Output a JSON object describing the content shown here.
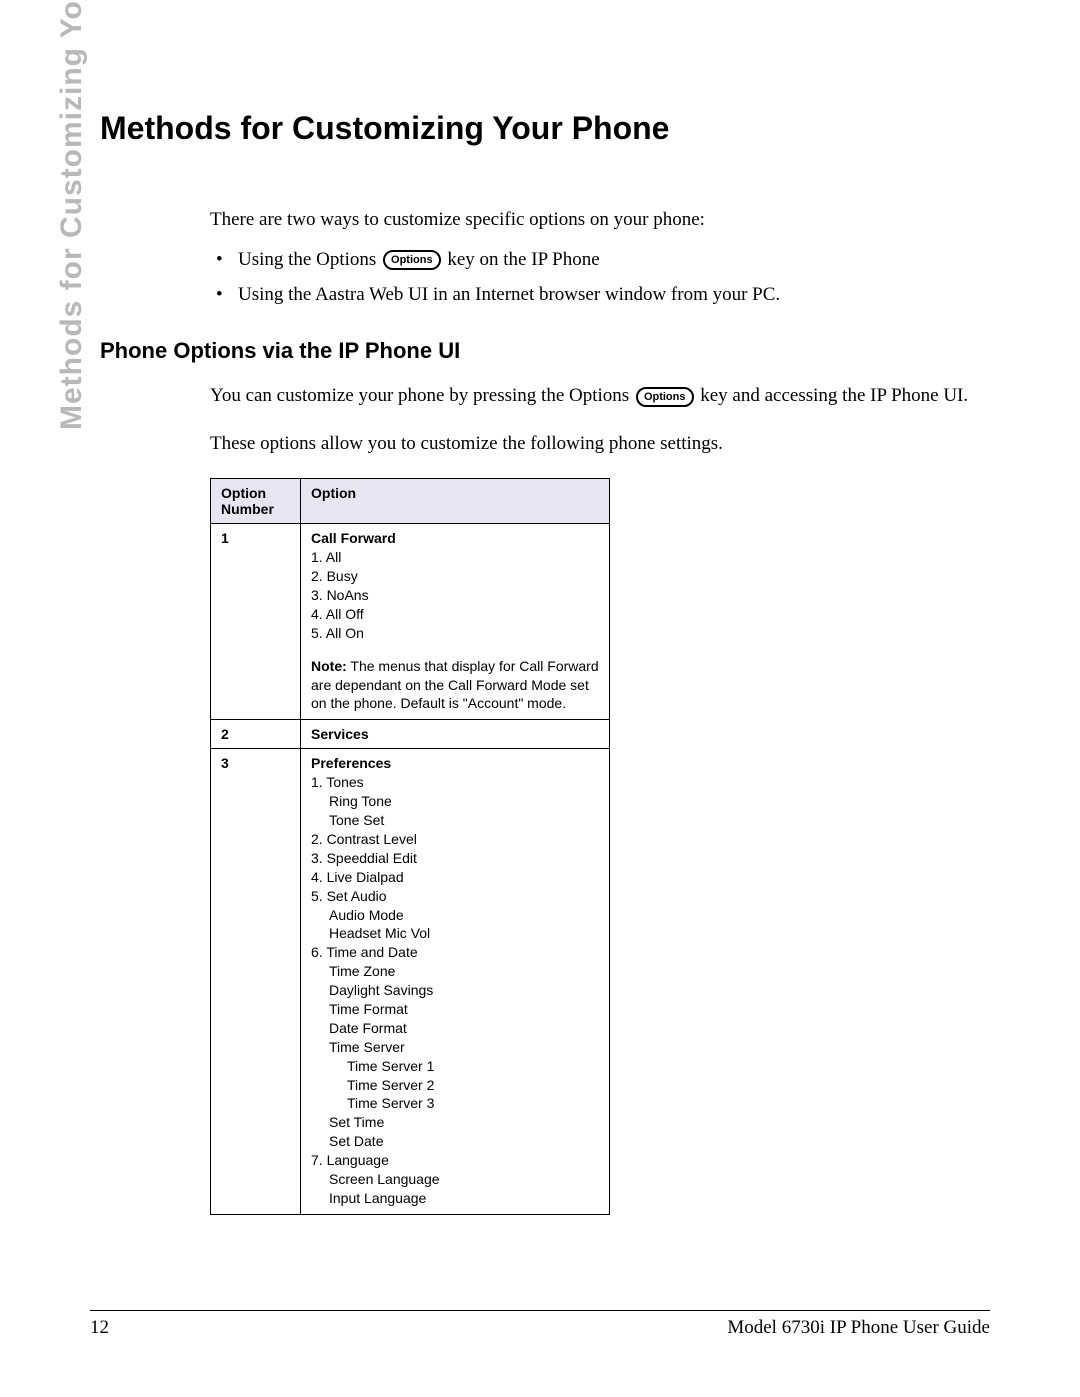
{
  "side_title": "Methods for Customizing Your Phone",
  "heading": "Methods for Customizing Your Phone",
  "intro": "There are two ways to customize specific options on your phone:",
  "bullet1_a": "Using the Options ",
  "bullet1_b": " key on the IP Phone",
  "bullet2": "Using the Aastra Web UI in an Internet browser window from your PC.",
  "options_key_label": "Options",
  "sub_heading": "Phone Options via the IP Phone UI",
  "para1_a": "You can customize your phone by pressing the Options ",
  "para1_b": " key and accessing the IP Phone UI.",
  "para2": "These options allow you to customize the following phone settings.",
  "table": {
    "header_col1": "Option Number",
    "header_col2": "Option",
    "header_bg": "#e6e6f2",
    "border_color": "#000000",
    "rows": {
      "r1": {
        "num": "1",
        "title": "Call Forward",
        "items": {
          "i1": "1. All",
          "i2": "2. Busy",
          "i3": "3. NoAns",
          "i4": "4. All Off",
          "i5": "5. All On"
        },
        "note_label": "Note:",
        "note_text": " The menus that display for Call Forward are dependant on the Call Forward Mode set on the phone. Default is \"Account\" mode."
      },
      "r2": {
        "num": "2",
        "title": "Services"
      },
      "r3": {
        "num": "3",
        "title": "Preferences",
        "items": {
          "i1": "1. Tones",
          "i1a": "Ring Tone",
          "i1b": "Tone Set",
          "i2": "2. Contrast Level",
          "i3": "3. Speeddial Edit",
          "i4": "4. Live Dialpad",
          "i5": "5. Set Audio",
          "i5a": "Audio Mode",
          "i5b": "Headset Mic Vol",
          "i6": "6. Time and Date",
          "i6a": "Time Zone",
          "i6b": "Daylight Savings",
          "i6c": "Time Format",
          "i6d": "Date Format",
          "i6e": "Time Server",
          "i6e1": "Time Server 1",
          "i6e2": "Time Server 2",
          "i6e3": "Time Server 3",
          "i6f": "Set Time",
          "i6g": "Set Date",
          "i7": "7. Language",
          "i7a": "Screen Language",
          "i7b": "Input Language"
        }
      }
    }
  },
  "footer": {
    "page_number": "12",
    "doc_title": "Model 6730i IP Phone User Guide"
  }
}
